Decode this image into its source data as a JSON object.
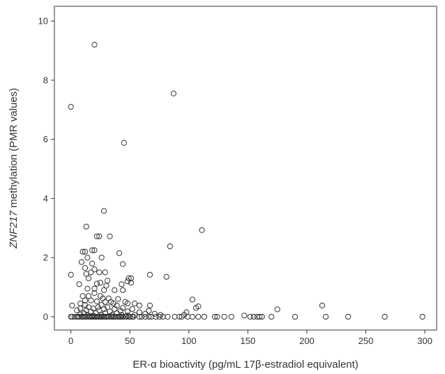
{
  "chart_data": {
    "type": "scatter",
    "title": "",
    "xlabel": "ER-α bioactivity (pg/mL 17β-estradiol equivalent)",
    "ylabel_italic": "ZNF217",
    "ylabel_rest": " methylation (PMR values)",
    "xlim": [
      -14,
      310
    ],
    "ylim": [
      -0.45,
      10.5
    ],
    "xticks": [
      0,
      50,
      100,
      150,
      200,
      250,
      300
    ],
    "yticks": [
      0,
      2,
      4,
      6,
      8,
      10
    ],
    "grid": false,
    "legend": "none",
    "marker": "open-circle",
    "colors": {
      "marker": "#333333",
      "axis": "#333333",
      "background": "#ffffff"
    },
    "points": [
      [
        20,
        9.2
      ],
      [
        0,
        7.1
      ],
      [
        87,
        7.55
      ],
      [
        45,
        5.88
      ],
      [
        28,
        3.58
      ],
      [
        13,
        3.05
      ],
      [
        111,
        2.93
      ],
      [
        22,
        2.72
      ],
      [
        24,
        2.72
      ],
      [
        33,
        2.72
      ],
      [
        84,
        2.38
      ],
      [
        10,
        2.2
      ],
      [
        12,
        2.2
      ],
      [
        18,
        2.25
      ],
      [
        20,
        2.25
      ],
      [
        41,
        2.15
      ],
      [
        14,
        2.0
      ],
      [
        26,
        2.0
      ],
      [
        9,
        1.85
      ],
      [
        18,
        1.8
      ],
      [
        44,
        1.78
      ],
      [
        12,
        1.65
      ],
      [
        20,
        1.6
      ],
      [
        0,
        1.42
      ],
      [
        13,
        1.45
      ],
      [
        17,
        1.5
      ],
      [
        24,
        1.5
      ],
      [
        29,
        1.5
      ],
      [
        67,
        1.42
      ],
      [
        81,
        1.35
      ],
      [
        15,
        1.3
      ],
      [
        49,
        1.3
      ],
      [
        51,
        1.3
      ],
      [
        31,
        1.22
      ],
      [
        48,
        1.2
      ],
      [
        7,
        1.1
      ],
      [
        22,
        1.12
      ],
      [
        25,
        1.15
      ],
      [
        43,
        1.1
      ],
      [
        51,
        1.15
      ],
      [
        30,
        1.05
      ],
      [
        14,
        0.95
      ],
      [
        20,
        0.95
      ],
      [
        28,
        0.9
      ],
      [
        37,
        0.9
      ],
      [
        44,
        0.9
      ],
      [
        20,
        0.8
      ],
      [
        15,
        0.7
      ],
      [
        10,
        0.7
      ],
      [
        25,
        0.7
      ],
      [
        32,
        0.62
      ],
      [
        27,
        0.62
      ],
      [
        40,
        0.6
      ],
      [
        103,
        0.58
      ],
      [
        12,
        0.55
      ],
      [
        17,
        0.55
      ],
      [
        22,
        0.52
      ],
      [
        29,
        0.5
      ],
      [
        34,
        0.5
      ],
      [
        46,
        0.5
      ],
      [
        8,
        0.45
      ],
      [
        36,
        0.45
      ],
      [
        48,
        0.45
      ],
      [
        54,
        0.45
      ],
      [
        12,
        0.4
      ],
      [
        26,
        0.4
      ],
      [
        1,
        0.38
      ],
      [
        39,
        0.38
      ],
      [
        58,
        0.38
      ],
      [
        67,
        0.38
      ],
      [
        108,
        0.35
      ],
      [
        213,
        0.38
      ],
      [
        15,
        0.32
      ],
      [
        23,
        0.32
      ],
      [
        31,
        0.32
      ],
      [
        44,
        0.3
      ],
      [
        106,
        0.3
      ],
      [
        8,
        0.28
      ],
      [
        19,
        0.28
      ],
      [
        28,
        0.26
      ],
      [
        37,
        0.26
      ],
      [
        52,
        0.26
      ],
      [
        175,
        0.25
      ],
      [
        5,
        0.22
      ],
      [
        13,
        0.22
      ],
      [
        24,
        0.22
      ],
      [
        42,
        0.2
      ],
      [
        66,
        0.2
      ],
      [
        17,
        0.18
      ],
      [
        33,
        0.18
      ],
      [
        48,
        0.18
      ],
      [
        58,
        0.15
      ],
      [
        98,
        0.15
      ],
      [
        11,
        0.12
      ],
      [
        21,
        0.12
      ],
      [
        29,
        0.12
      ],
      [
        39,
        0.12
      ],
      [
        63,
        0.1
      ],
      [
        71,
        0.1
      ],
      [
        8,
        0.08
      ],
      [
        26,
        0.06
      ],
      [
        35,
        0.06
      ],
      [
        43,
        0.06
      ],
      [
        54,
        0.06
      ],
      [
        76,
        0.06
      ],
      [
        96,
        0.06
      ],
      [
        14,
        0.04
      ],
      [
        19,
        0.04
      ],
      [
        48,
        0.04
      ],
      [
        147,
        0.04
      ],
      [
        0,
        0
      ],
      [
        1,
        0
      ],
      [
        3,
        0
      ],
      [
        5,
        0
      ],
      [
        6,
        0
      ],
      [
        7,
        0
      ],
      [
        9,
        0
      ],
      [
        10,
        0
      ],
      [
        11,
        0
      ],
      [
        12,
        0
      ],
      [
        13,
        0
      ],
      [
        15,
        0
      ],
      [
        16,
        0
      ],
      [
        17,
        0
      ],
      [
        18,
        0
      ],
      [
        19,
        0
      ],
      [
        20,
        0
      ],
      [
        21,
        0
      ],
      [
        22,
        0
      ],
      [
        23,
        0
      ],
      [
        24,
        0
      ],
      [
        25,
        0
      ],
      [
        26,
        0
      ],
      [
        27,
        0
      ],
      [
        28,
        0
      ],
      [
        29,
        0
      ],
      [
        30,
        0
      ],
      [
        31,
        0
      ],
      [
        32,
        0
      ],
      [
        34,
        0
      ],
      [
        35,
        0
      ],
      [
        36,
        0
      ],
      [
        37,
        0
      ],
      [
        38,
        0
      ],
      [
        40,
        0
      ],
      [
        41,
        0
      ],
      [
        42,
        0
      ],
      [
        43,
        0
      ],
      [
        44,
        0
      ],
      [
        46,
        0
      ],
      [
        47,
        0
      ],
      [
        49,
        0
      ],
      [
        50,
        0
      ],
      [
        52,
        0
      ],
      [
        53,
        0
      ],
      [
        58,
        0
      ],
      [
        60,
        0
      ],
      [
        63,
        0
      ],
      [
        66,
        0
      ],
      [
        68,
        0
      ],
      [
        72,
        0
      ],
      [
        75,
        0
      ],
      [
        78,
        0
      ],
      [
        82,
        0
      ],
      [
        88,
        0
      ],
      [
        92,
        0
      ],
      [
        94,
        0
      ],
      [
        99,
        0
      ],
      [
        103,
        0
      ],
      [
        108,
        0
      ],
      [
        113,
        0
      ],
      [
        122,
        0
      ],
      [
        124,
        0
      ],
      [
        130,
        0
      ],
      [
        136,
        0
      ],
      [
        152,
        0
      ],
      [
        155,
        0
      ],
      [
        158,
        0
      ],
      [
        160,
        0
      ],
      [
        162,
        0
      ],
      [
        170,
        0
      ],
      [
        190,
        0
      ],
      [
        216,
        0
      ],
      [
        235,
        0
      ],
      [
        266,
        0
      ],
      [
        298,
        0
      ]
    ]
  }
}
